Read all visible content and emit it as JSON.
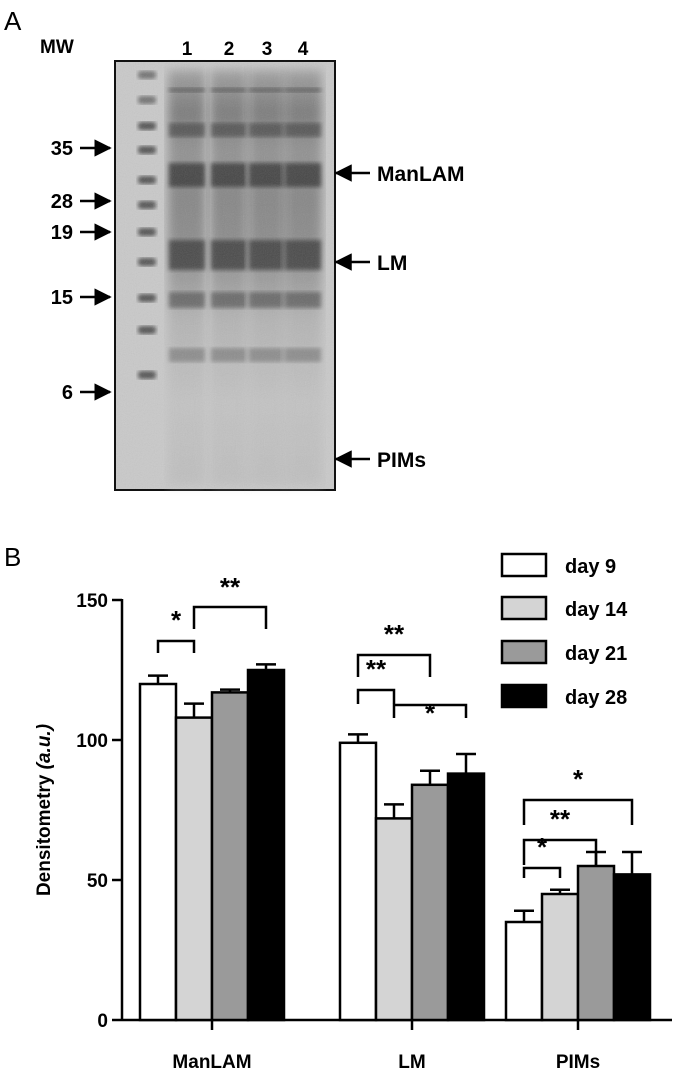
{
  "panels": {
    "a_label": "A",
    "b_label": "B"
  },
  "gel": {
    "mw_label": "MW",
    "lanes": [
      "1",
      "2",
      "3",
      "4"
    ],
    "markers": [
      {
        "label": "35",
        "kda": 35
      },
      {
        "label": "28",
        "kda": 28
      },
      {
        "label": "19",
        "kda": 19
      },
      {
        "label": "15",
        "kda": 15
      },
      {
        "label": "6",
        "kda": 6
      }
    ],
    "bands": [
      "ManLAM",
      "LM",
      "PIMs"
    ]
  },
  "colors": {
    "day9": "#ffffff",
    "day14": "#d4d4d4",
    "day21": "#9a9a9a",
    "day28": "#000000"
  },
  "chart_data": {
    "type": "bar",
    "title": "",
    "xlabel": "",
    "ylabel": "Densitometry",
    "ylabel_unit": "(a.u.)",
    "ylim": [
      0,
      150
    ],
    "yticks": [
      "0",
      "50",
      "100",
      "150"
    ],
    "ytick_values": [
      0,
      50,
      100,
      150
    ],
    "categories": [
      "ManLAM",
      "LM",
      "PIMs"
    ],
    "legend_position": "top-right",
    "grid": false,
    "series": [
      {
        "name": "day 9",
        "color": "#ffffff",
        "values": [
          120,
          99,
          35
        ],
        "errors": [
          3,
          3,
          4
        ]
      },
      {
        "name": "day 14",
        "color": "#d4d4d4",
        "values": [
          108,
          72,
          45
        ],
        "errors": [
          5,
          5,
          1.5
        ]
      },
      {
        "name": "day 21",
        "color": "#9a9a9a",
        "values": [
          117,
          84,
          55
        ],
        "errors": [
          1,
          5,
          5
        ]
      },
      {
        "name": "day 28",
        "color": "#000000",
        "values": [
          125,
          88,
          52
        ],
        "errors": [
          2,
          7,
          8
        ]
      }
    ],
    "significance": [
      {
        "category": 0,
        "from": 0,
        "to": 1,
        "label": "*"
      },
      {
        "category": 0,
        "from": 1,
        "to": 3,
        "label": "**"
      },
      {
        "category": 1,
        "from": 0,
        "to": 2,
        "label": "**"
      },
      {
        "category": 1,
        "from": 0,
        "to": 1,
        "label": "**"
      },
      {
        "category": 1,
        "from": 1,
        "to": 3,
        "label": "*"
      },
      {
        "category": 2,
        "from": 0,
        "to": 3,
        "label": "*"
      },
      {
        "category": 2,
        "from": 0,
        "to": 2,
        "label": "**"
      },
      {
        "category": 2,
        "from": 0,
        "to": 1,
        "label": "*"
      }
    ]
  }
}
